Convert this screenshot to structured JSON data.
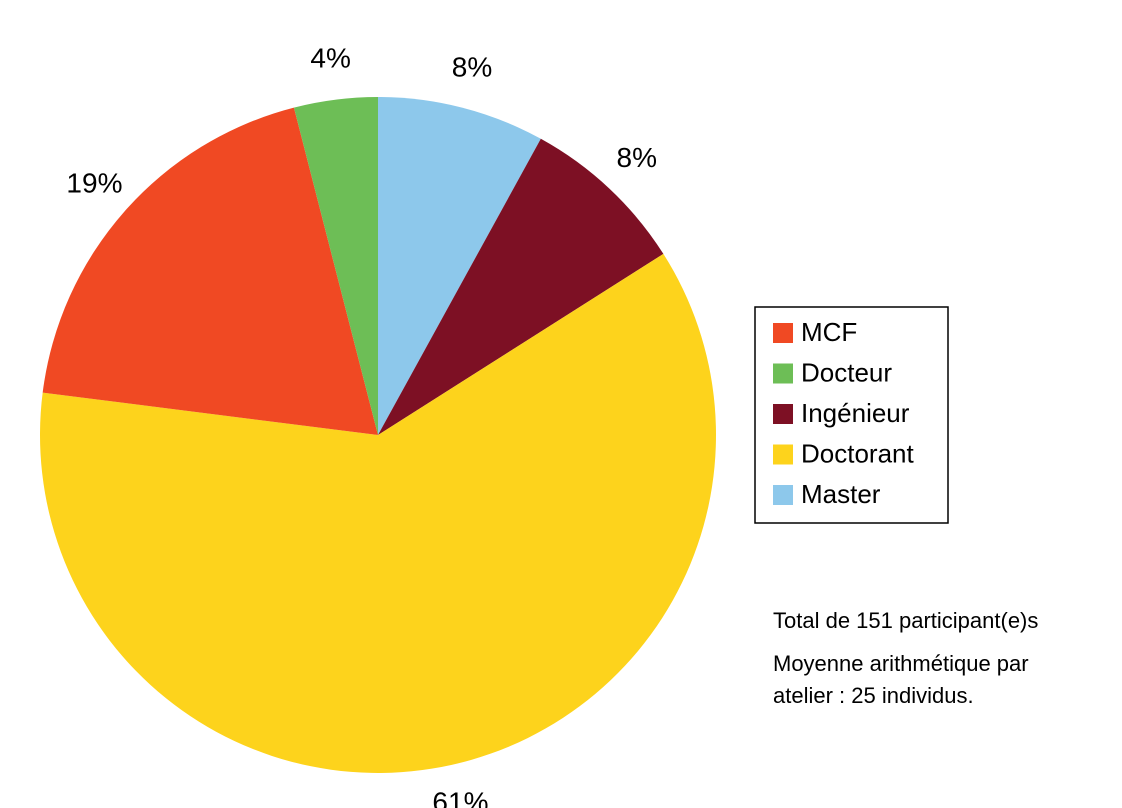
{
  "chart_data": {
    "type": "pie",
    "categories": [
      "MCF",
      "Docteur",
      "Ingénieur",
      "Doctorant",
      "Master"
    ],
    "values": [
      19,
      4,
      8,
      61,
      8
    ],
    "value_labels": [
      "19%",
      "4%",
      "8%",
      "61%",
      "8%"
    ],
    "colors": [
      "#f04923",
      "#6dbe56",
      "#7d1024",
      "#fdd31c",
      "#8dc8eb"
    ],
    "legend": "right",
    "notes": [
      "Total de 151 participant(e)s",
      "Moyenne arithmétique par",
      "atelier : 25 individus."
    ]
  }
}
